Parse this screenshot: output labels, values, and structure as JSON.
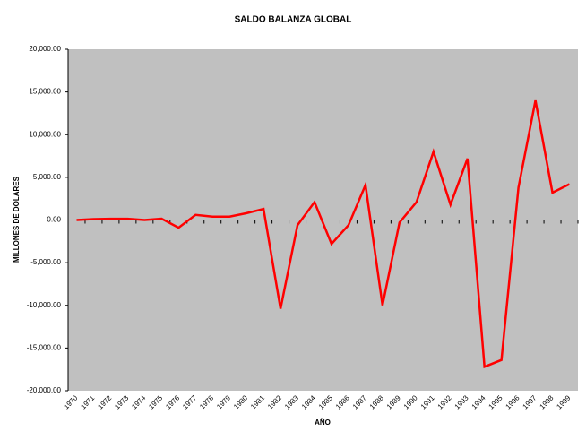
{
  "chart_data": {
    "type": "line",
    "title": "SALDO BALANZA GLOBAL",
    "x_label": "AÑO",
    "y_label": "MILLONES DE DOLARES",
    "categories": [
      "1970",
      "1971",
      "1972",
      "1973",
      "1974",
      "1975",
      "1976",
      "1977",
      "1978",
      "1979",
      "1980",
      "1981",
      "1982",
      "1983",
      "1984",
      "1985",
      "1986",
      "1987",
      "1988",
      "1989",
      "1990",
      "1991",
      "1992",
      "1993",
      "1994",
      "1995",
      "1996",
      "1997",
      "1998",
      "1999"
    ],
    "values": [
      0,
      100,
      150,
      150,
      0,
      150,
      -900,
      600,
      400,
      400,
      800,
      1300,
      -10400,
      -600,
      2100,
      -2800,
      -600,
      4100,
      -10000,
      -300,
      2100,
      8000,
      1800,
      7200,
      -17200,
      -16400,
      3800,
      14000,
      3200,
      4200
    ],
    "color": "#ff0000",
    "ylim": [
      -20000,
      20000
    ],
    "yticks": [
      {
        "value": -20000,
        "label": "-20,000.00"
      },
      {
        "value": -15000,
        "label": "-15,000.00"
      },
      {
        "value": -10000,
        "label": "-10,000.00"
      },
      {
        "value": -5000,
        "label": "-5,000.00"
      },
      {
        "value": 0,
        "label": "0.00"
      },
      {
        "value": 5000,
        "label": "5,000.00"
      },
      {
        "value": 10000,
        "label": "10,000.00"
      },
      {
        "value": 15000,
        "label": "15,000.00"
      },
      {
        "value": 20000,
        "label": "20,000.00"
      }
    ],
    "negative_tick_color": "#ff0000",
    "plot_background": "#c0c0c0"
  }
}
